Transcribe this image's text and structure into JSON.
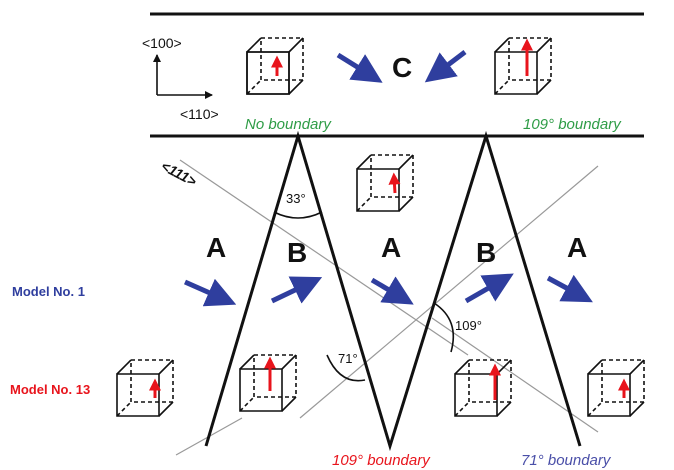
{
  "colors": {
    "arrow_blue": "#2f3e9e",
    "polarization_red": "#e8141c",
    "label_green": "#2e9c46",
    "label_red": "#e8141c",
    "label_blue": "#4a4fa8",
    "line_black": "#111111"
  },
  "axes": {
    "vertical_label": "<100>",
    "horizontal_label": "<110>",
    "diagonal_label": "<111>"
  },
  "regions": {
    "c_label": "C",
    "a_label": "A",
    "b_label": "B"
  },
  "angles": {
    "apex": "33°",
    "left": "71°",
    "right": "109°"
  },
  "boundaries": {
    "no_boundary": "No boundary",
    "top_109": "109° boundary",
    "bottom_109": "109° boundary",
    "bottom_71": "71° boundary"
  },
  "models": {
    "model_1": "Model No. 1",
    "model_13": "Model No. 13"
  }
}
